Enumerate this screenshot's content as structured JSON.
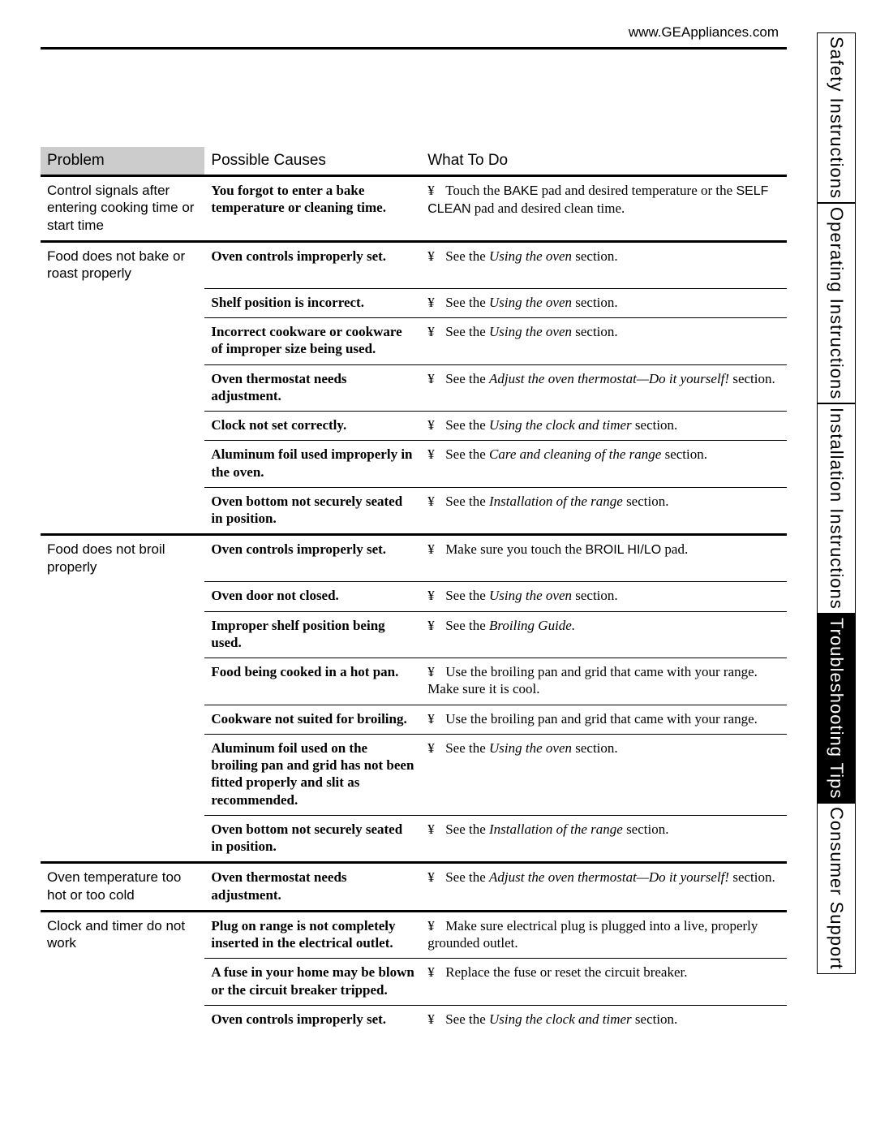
{
  "header": {
    "url": "www.GEAppliances.com"
  },
  "side_tabs": [
    {
      "label": "Safety Instructions",
      "active": false
    },
    {
      "label": "Operating Instructions",
      "active": false
    },
    {
      "label": "Installation Instructions",
      "active": false
    },
    {
      "label": "Troubleshooting Tips",
      "active": true
    },
    {
      "label": "Consumer Support",
      "active": false
    }
  ],
  "table": {
    "headers": {
      "problem": "Problem",
      "cause": "Possible Causes",
      "action": "What To Do"
    },
    "bullet_char": "¥",
    "groups": [
      {
        "problem": "Control signals after entering cooking time or start time",
        "rows": [
          {
            "cause": "You forgot to enter a bake temperature or cleaning time.",
            "action_html": "Touch the <span class='sans'>BAKE</span> pad and desired temperature or the <span class='sans'>SELF CLEAN</span> pad and desired clean time."
          }
        ]
      },
      {
        "problem": "Food does not bake or roast properly",
        "rows": [
          {
            "cause": "Oven controls improperly set.",
            "action_html": "See the <span class='ital'>Using the oven</span> section."
          },
          {
            "cause": "Shelf position is incorrect.",
            "action_html": "See the <span class='ital'>Using the oven</span> section."
          },
          {
            "cause": "Incorrect cookware or cookware of improper size being used.",
            "action_html": "See the <span class='ital'>Using the oven</span> section."
          },
          {
            "cause": "Oven thermostat needs adjustment.",
            "action_html": "See the <span class='ital'>Adjust the oven thermostat—Do it yourself!</span> section."
          },
          {
            "cause": "Clock not set correctly.",
            "action_html": "See the <span class='ital'>Using the clock and timer</span> section."
          },
          {
            "cause": "Aluminum foil used improperly in the oven.",
            "action_html": "See the <span class='ital'>Care and cleaning of the range</span> section."
          },
          {
            "cause": "Oven bottom not securely seated in position.",
            "action_html": "See the <span class='ital'>Installation of the range</span> section."
          }
        ]
      },
      {
        "problem": "Food does not broil properly",
        "rows": [
          {
            "cause": "Oven controls improperly set.",
            "action_html": "Make sure you touch the <span class='sans'>BROIL HI/LO</span> pad."
          },
          {
            "cause": "Oven door not closed.",
            "action_html": "See the <span class='ital'>Using the oven</span> section."
          },
          {
            "cause": "Improper shelf position being used.",
            "action_html": "See the <span class='ital'>Broiling Guide.</span>"
          },
          {
            "cause": "Food being cooked in a hot pan.",
            "action_html": "Use the broiling pan and grid that came with your range. Make sure it is cool."
          },
          {
            "cause": "Cookware not suited for broiling.",
            "action_html": "Use the broiling pan and grid that came with your range."
          },
          {
            "cause": "Aluminum foil used on the broiling pan and grid has not been fitted properly and slit as recommended.",
            "action_html": "See the <span class='ital'>Using the oven</span> section."
          },
          {
            "cause": "Oven bottom not securely seated in position.",
            "action_html": "See the <span class='ital'>Installation of the range</span> section."
          }
        ]
      },
      {
        "problem": "Oven temperature too hot or too cold",
        "rows": [
          {
            "cause": "Oven thermostat needs adjustment.",
            "action_html": "See the <span class='ital'>Adjust the oven thermostat—Do it yourself!</span> section."
          }
        ]
      },
      {
        "problem": "Clock and timer do not work",
        "rows": [
          {
            "cause": "Plug on range is not completely inserted in the electrical outlet.",
            "action_html": "Make sure electrical plug is plugged into a live, properly grounded outlet."
          },
          {
            "cause": "A fuse in your home may be blown or the circuit breaker tripped.",
            "action_html": "Replace the fuse or reset the circuit breaker."
          },
          {
            "cause": "Oven controls improperly set.",
            "action_html": "See the <span class='ital'>Using the clock and timer</span> section."
          }
        ]
      }
    ]
  }
}
